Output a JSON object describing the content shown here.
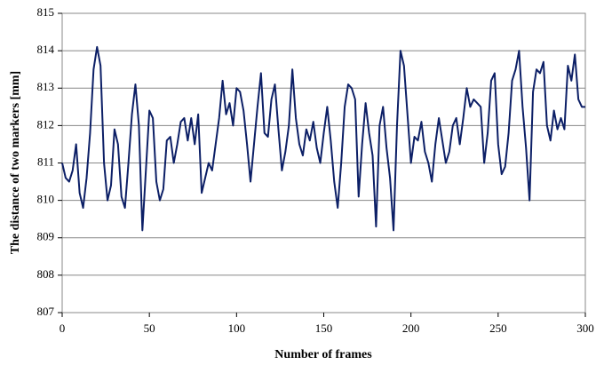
{
  "chart_data": {
    "type": "line",
    "xlabel": "Number of frames",
    "ylabel": "The distance of  two markers [mm]",
    "x": [
      0,
      2,
      4,
      6,
      8,
      10,
      12,
      14,
      16,
      18,
      20,
      22,
      24,
      26,
      28,
      30,
      32,
      34,
      36,
      38,
      40,
      42,
      44,
      46,
      48,
      50,
      52,
      54,
      56,
      58,
      60,
      62,
      64,
      66,
      68,
      70,
      72,
      74,
      76,
      78,
      80,
      82,
      84,
      86,
      88,
      90,
      92,
      94,
      96,
      98,
      100,
      102,
      104,
      106,
      108,
      110,
      112,
      114,
      116,
      118,
      120,
      122,
      124,
      126,
      128,
      130,
      132,
      134,
      136,
      138,
      140,
      142,
      144,
      146,
      148,
      150,
      152,
      154,
      156,
      158,
      160,
      162,
      164,
      166,
      168,
      170,
      172,
      174,
      176,
      178,
      180,
      182,
      184,
      186,
      188,
      190,
      192,
      194,
      196,
      198,
      200,
      202,
      204,
      206,
      208,
      210,
      212,
      214,
      216,
      218,
      220,
      222,
      224,
      226,
      228,
      230,
      232,
      234,
      236,
      238,
      240,
      242,
      244,
      246,
      248,
      250,
      252,
      254,
      256,
      258,
      260,
      262,
      264,
      266,
      268,
      270,
      272,
      274,
      276,
      278,
      280,
      282,
      284,
      286,
      288,
      290,
      292,
      294,
      296,
      298,
      300
    ],
    "series": [
      {
        "name": "distance",
        "color": "#0c1f66",
        "values": [
          811.0,
          810.6,
          810.5,
          810.8,
          811.5,
          810.2,
          809.8,
          810.6,
          811.8,
          813.5,
          814.1,
          813.6,
          811.0,
          810.0,
          810.4,
          811.9,
          811.5,
          810.1,
          809.8,
          811.0,
          812.3,
          813.1,
          812.0,
          809.2,
          810.8,
          812.4,
          812.2,
          810.5,
          810.0,
          810.3,
          811.6,
          811.7,
          811.0,
          811.5,
          812.1,
          812.2,
          811.6,
          812.2,
          811.5,
          812.3,
          810.2,
          810.6,
          811.0,
          810.8,
          811.5,
          812.2,
          813.2,
          812.3,
          812.6,
          812.0,
          813.0,
          812.9,
          812.4,
          811.5,
          810.5,
          811.5,
          812.5,
          813.4,
          811.8,
          811.7,
          812.7,
          813.1,
          811.9,
          810.8,
          811.3,
          812.0,
          813.5,
          812.2,
          811.5,
          811.2,
          811.9,
          811.6,
          812.1,
          811.4,
          811.0,
          811.8,
          812.5,
          811.6,
          810.5,
          809.8,
          811.0,
          812.5,
          813.1,
          813.0,
          812.7,
          810.1,
          811.5,
          812.6,
          811.8,
          811.2,
          809.3,
          812.0,
          812.5,
          811.4,
          810.6,
          809.2,
          812.0,
          814.0,
          813.6,
          812.3,
          811.0,
          811.7,
          811.6,
          812.1,
          811.3,
          811.0,
          810.5,
          811.5,
          812.2,
          811.6,
          811.0,
          811.3,
          812.0,
          812.2,
          811.5,
          812.2,
          813.0,
          812.5,
          812.7,
          812.6,
          812.5,
          811.0,
          811.8,
          813.2,
          813.4,
          811.5,
          810.7,
          810.9,
          811.8,
          813.2,
          813.5,
          814.0,
          812.5,
          811.4,
          810.0,
          812.9,
          813.5,
          813.4,
          813.7,
          812.0,
          811.6,
          812.4,
          811.9,
          812.2,
          811.9,
          813.6,
          813.2,
          813.9,
          812.7,
          812.5,
          812.5
        ]
      }
    ],
    "xlim": [
      0,
      300
    ],
    "xticks": [
      0,
      50,
      100,
      150,
      200,
      250,
      300
    ],
    "ylim": [
      807,
      815
    ],
    "yticks": [
      807,
      808,
      809,
      810,
      811,
      812,
      813,
      814,
      815
    ],
    "grid": true
  }
}
